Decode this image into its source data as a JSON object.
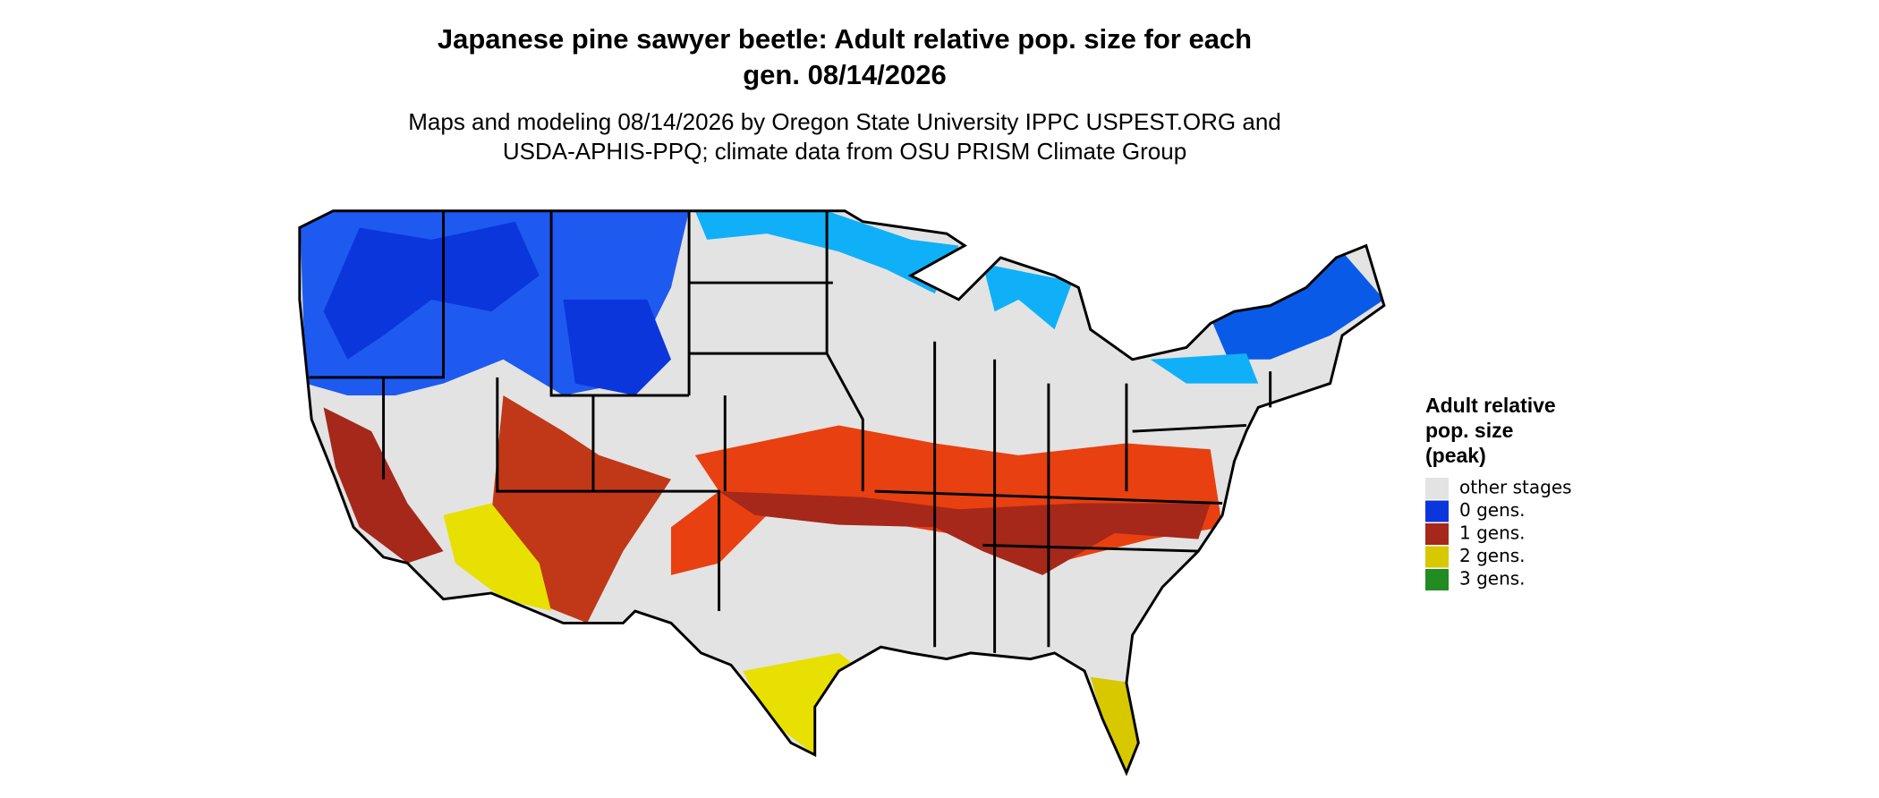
{
  "title_lines": [
    "Japanese pine sawyer beetle: Adult relative pop. size for each",
    "gen. 08/14/2026"
  ],
  "subtitle_lines": [
    "Maps and modeling 08/14/2026 by Oregon State University IPPC USPEST.ORG and",
    "USDA-APHIS-PPQ; climate data from OSU PRISM Climate Group"
  ],
  "legend": {
    "title_lines": [
      "Adult relative",
      "pop. size",
      "(peak)"
    ],
    "items": [
      {
        "label": "other stages",
        "color": "#e3e3e3"
      },
      {
        "label": "0 gens.",
        "color": "#0a36dc"
      },
      {
        "label": "1 gens.",
        "color": "#a5281a"
      },
      {
        "label": "2 gens.",
        "color": "#d8c800"
      },
      {
        "label": "3 gens.",
        "color": "#228b22"
      }
    ]
  }
}
